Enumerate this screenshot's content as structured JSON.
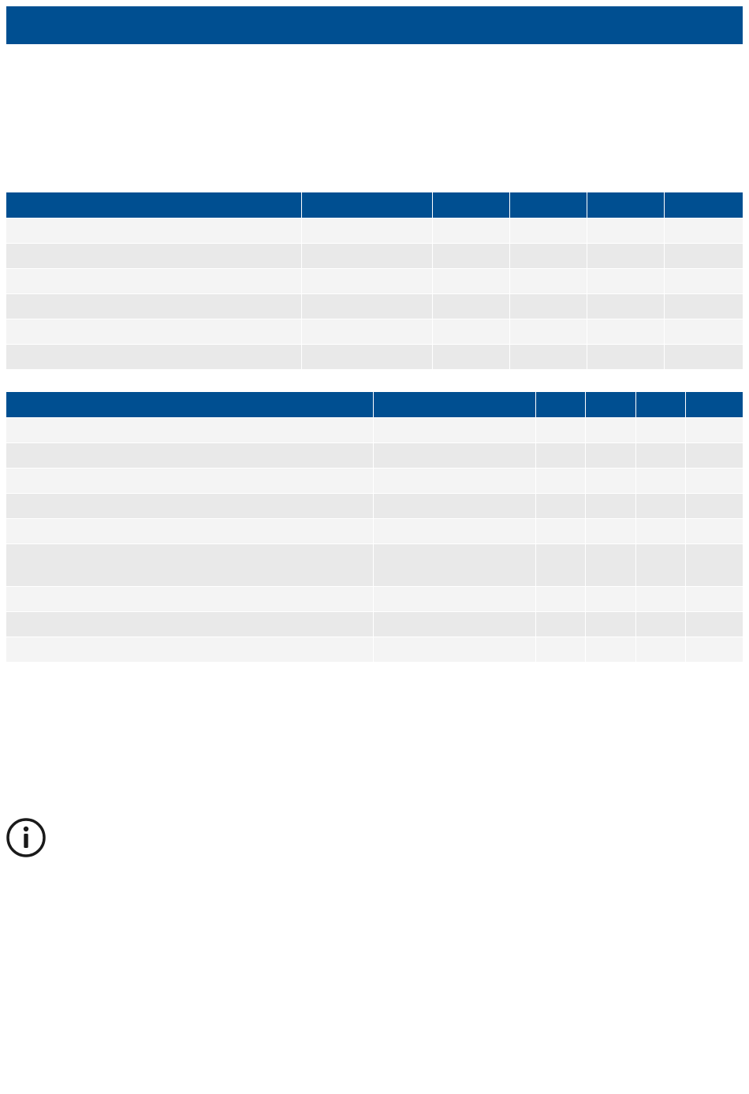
{
  "page": {
    "title": ""
  },
  "icons": {
    "info": "info-icon"
  },
  "colors": {
    "header_background": "#004f91",
    "row_light": "#f4f4f4",
    "row_dark": "#e9e9e9"
  },
  "table_1": {
    "headers": [
      "",
      "",
      "",
      "",
      "",
      ""
    ],
    "rows": [
      [
        "",
        "",
        "",
        "",
        "",
        ""
      ],
      [
        "",
        "",
        "",
        "",
        "",
        ""
      ],
      [
        "",
        "",
        "",
        "",
        "",
        ""
      ],
      [
        "",
        "",
        "",
        "",
        "",
        ""
      ],
      [
        "",
        "",
        "",
        "",
        "",
        ""
      ],
      [
        "",
        "",
        "",
        "",
        "",
        ""
      ]
    ]
  },
  "table_2": {
    "headers": [
      "",
      "",
      "",
      "",
      "",
      ""
    ],
    "rows": [
      [
        "",
        "",
        "",
        "",
        "",
        ""
      ],
      [
        "",
        "",
        "",
        "",
        "",
        ""
      ],
      [
        "",
        "",
        "",
        "",
        "",
        ""
      ],
      [
        "",
        "",
        "",
        "",
        "",
        ""
      ],
      [
        "",
        "",
        "",
        "",
        "",
        ""
      ],
      [
        "",
        "",
        "",
        "",
        "",
        ""
      ],
      [
        "",
        "",
        "",
        "",
        "",
        ""
      ],
      [
        "",
        "",
        "",
        "",
        "",
        ""
      ],
      [
        "",
        "",
        "",
        "",
        "",
        ""
      ]
    ]
  }
}
